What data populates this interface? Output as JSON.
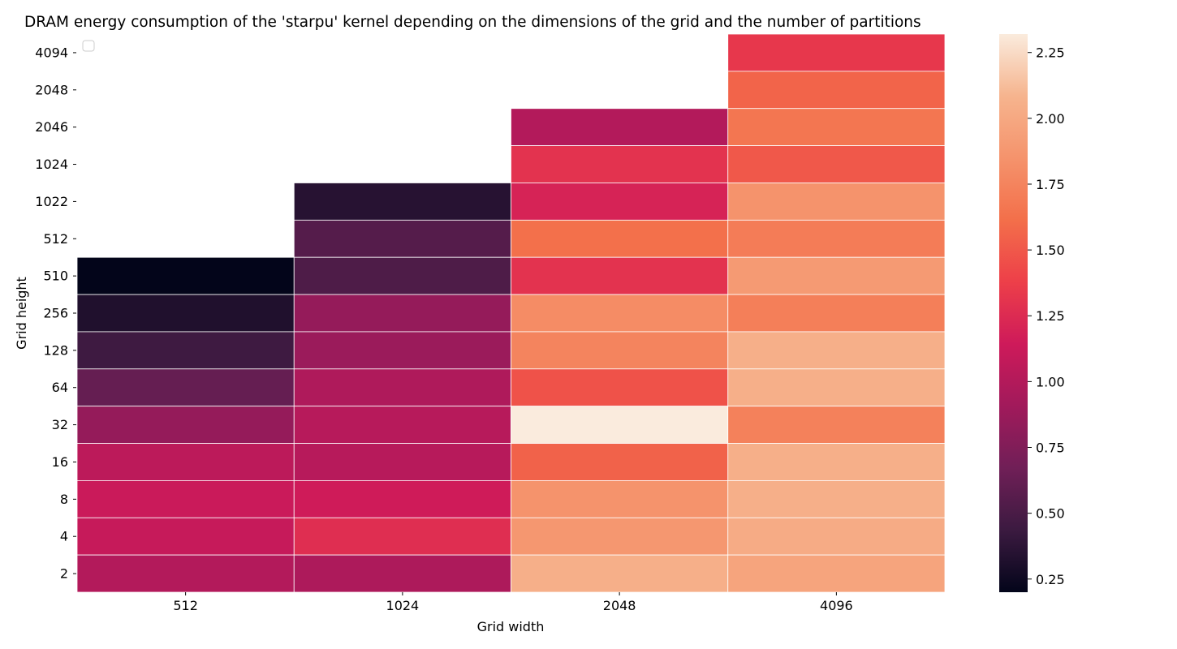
{
  "chart_data": {
    "type": "heatmap",
    "title": "DRAM energy consumption of the 'starpu' kernel depending on the dimensions of the grid and the number of partitions",
    "xlabel": "Grid width",
    "ylabel": "Grid height",
    "x_categories": [
      "512",
      "1024",
      "2048",
      "4096"
    ],
    "y_categories": [
      "4094",
      "2048",
      "2046",
      "1024",
      "1022",
      "512",
      "510",
      "256",
      "128",
      "64",
      "32",
      "16",
      "8",
      "4",
      "2"
    ],
    "values": [
      [
        null,
        null,
        null,
        1.33
      ],
      [
        null,
        null,
        null,
        1.56
      ],
      [
        null,
        null,
        1.0,
        1.66
      ],
      [
        null,
        null,
        1.3,
        1.5
      ],
      [
        null,
        0.35,
        1.2,
        1.85
      ],
      [
        null,
        0.55,
        1.62,
        1.7
      ],
      [
        0.2,
        0.52,
        1.3,
        1.9
      ],
      [
        0.32,
        0.85,
        1.8,
        1.72
      ],
      [
        0.45,
        0.88,
        1.75,
        2.05
      ],
      [
        0.62,
        0.98,
        1.47,
        2.05
      ],
      [
        0.85,
        1.02,
        2.32,
        1.73
      ],
      [
        1.05,
        1.02,
        1.55,
        2.05
      ],
      [
        1.12,
        1.15,
        1.85,
        2.05
      ],
      [
        1.1,
        1.27,
        1.88,
        2.02
      ],
      [
        1.0,
        0.97,
        2.05,
        1.97
      ]
    ],
    "colorbar": {
      "ticks": [
        0.25,
        0.5,
        0.75,
        1.0,
        1.25,
        1.5,
        1.75,
        2.0,
        2.25
      ],
      "tick_labels": [
        "0.25",
        "0.50",
        "0.75",
        "1.00",
        "1.25",
        "1.50",
        "1.75",
        "2.00",
        "2.25"
      ],
      "vmin": 0.2,
      "vmax": 2.32
    },
    "colormap": [
      "#03051a",
      "#3b1a40",
      "#701f57",
      "#a11a5b",
      "#ce1a5a",
      "#ed3f49",
      "#f36f4a",
      "#f5936c",
      "#f6b48e",
      "#faebdd"
    ],
    "legend": "top-left"
  }
}
